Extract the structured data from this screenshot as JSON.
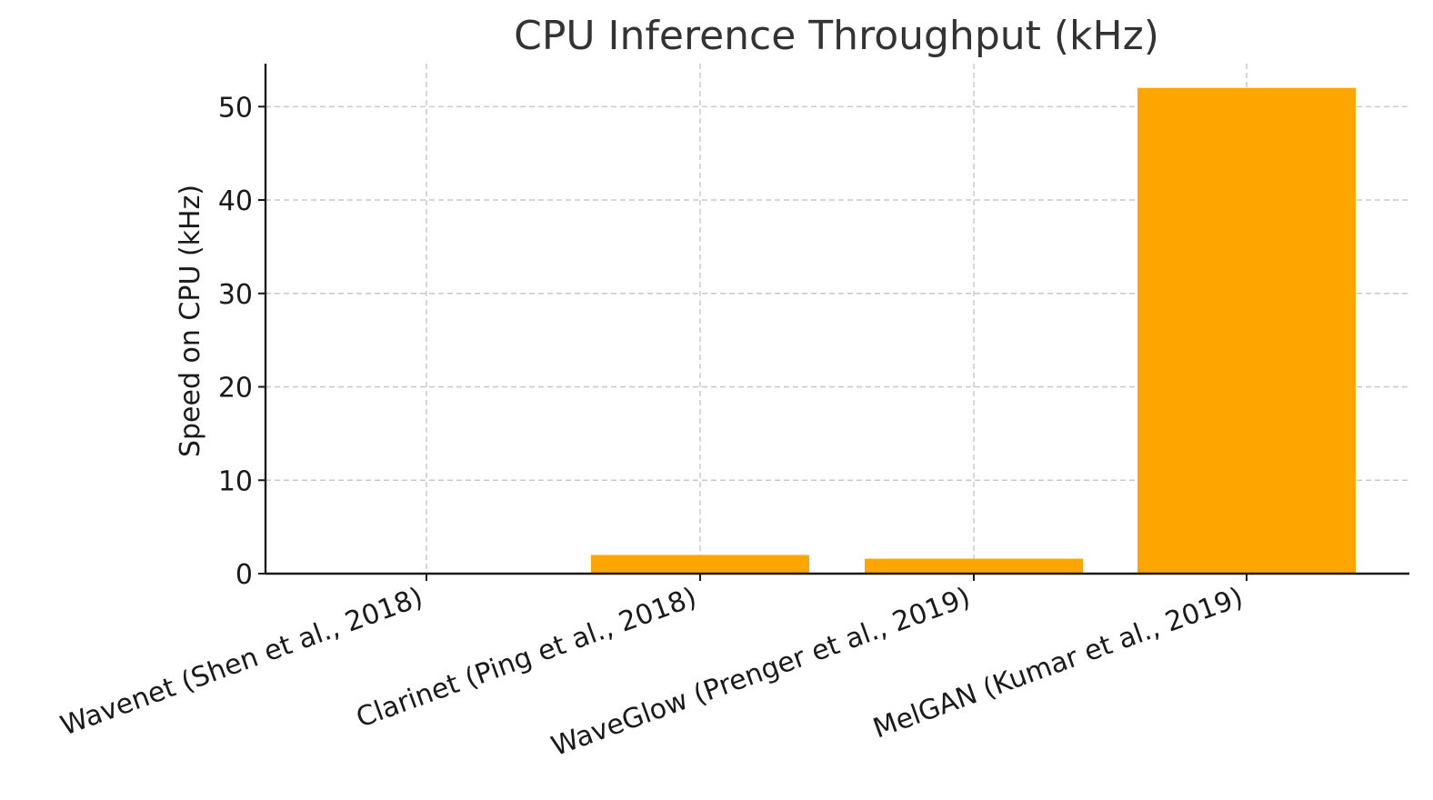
{
  "chart_data": {
    "type": "bar",
    "title": "CPU Inference Throughput (kHz)",
    "xlabel": "",
    "ylabel": "Speed on CPU (kHz)",
    "categories": [
      "Wavenet (Shen et al., 2018)",
      "Clarinet (Ping et al., 2018)",
      "WaveGlow (Prenger et al., 2019)",
      "MelGAN (Kumar et al., 2019)"
    ],
    "values": [
      0.0,
      2.0,
      1.6,
      52.0
    ],
    "ylim": [
      0,
      54.6
    ],
    "yticks": [
      0,
      10,
      20,
      30,
      40,
      50
    ],
    "bar_color": "#ffa500",
    "grid": true,
    "legend": "none"
  }
}
